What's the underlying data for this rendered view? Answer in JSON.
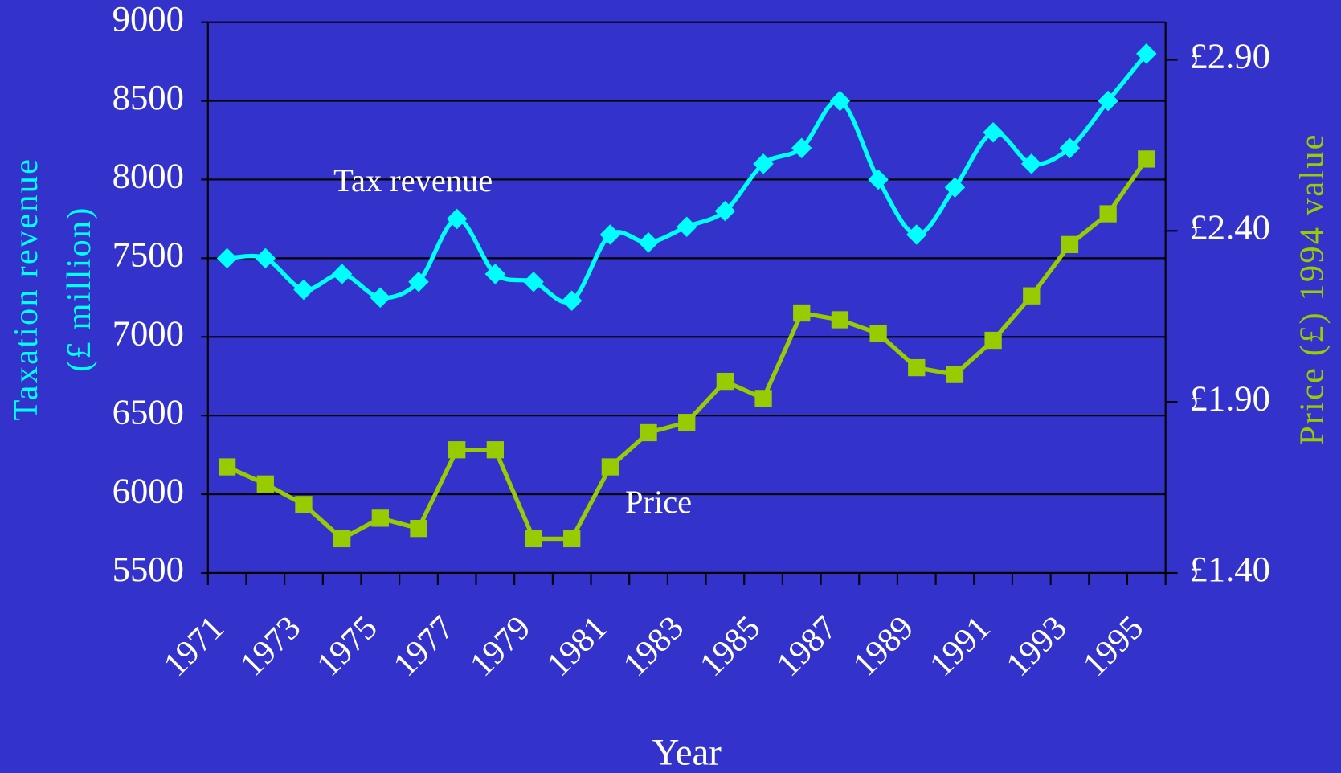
{
  "chart_data": {
    "type": "line",
    "annotations": [
      "Tax revenue",
      "Price"
    ],
    "xlabel": "Year",
    "ylabel": [
      "Taxation revenue",
      "(£ million)"
    ],
    "y2label": "Price (£) 1994 value",
    "categories": [
      "1971",
      null,
      "1973",
      null,
      "1975",
      null,
      "1977",
      null,
      "1979",
      null,
      "1981",
      null,
      "1983",
      null,
      "1985",
      null,
      "1987",
      null,
      "1989",
      null,
      "1991",
      null,
      "1993",
      null,
      "1995"
    ],
    "series": [
      {
        "name": "Tax revenue",
        "color": "#00ffff",
        "marker": "diamond",
        "smooth": true,
        "values": [
          7500,
          7500,
          7300,
          7400,
          7250,
          7350,
          7750,
          7400,
          7350,
          7230,
          7650,
          7600,
          7700,
          7800,
          8100,
          8200,
          8500,
          8000,
          7650,
          7950,
          8300,
          8100,
          8200,
          8500,
          8800
        ]
      },
      {
        "name": "Price",
        "color": "#99cc00",
        "marker": "square",
        "smooth": false,
        "axis": "y2",
        "values": [
          1.71,
          1.66,
          1.6,
          1.5,
          1.56,
          1.53,
          1.76,
          1.76,
          1.5,
          1.5,
          1.71,
          1.81,
          1.84,
          1.96,
          1.91,
          2.16,
          2.14,
          2.1,
          2.0,
          1.98,
          2.08,
          2.21,
          2.36,
          2.45,
          2.61
        ]
      }
    ],
    "ylim": [
      5500,
      9000
    ],
    "yticks": [
      5500,
      6000,
      6500,
      7000,
      7500,
      8000,
      8500,
      9000
    ],
    "y2lim": [
      1.4,
      3.01
    ],
    "y2ticks": [
      {
        "value": 1.4,
        "label": "£1.40"
      },
      {
        "value": 1.9,
        "label": "£1.90"
      },
      {
        "value": 2.4,
        "label": "£2.40"
      },
      {
        "value": 2.9,
        "label": "£2.90"
      }
    ],
    "grid": true,
    "ylabel_color": "#00ffff",
    "y2label_color": "#99cc00"
  }
}
